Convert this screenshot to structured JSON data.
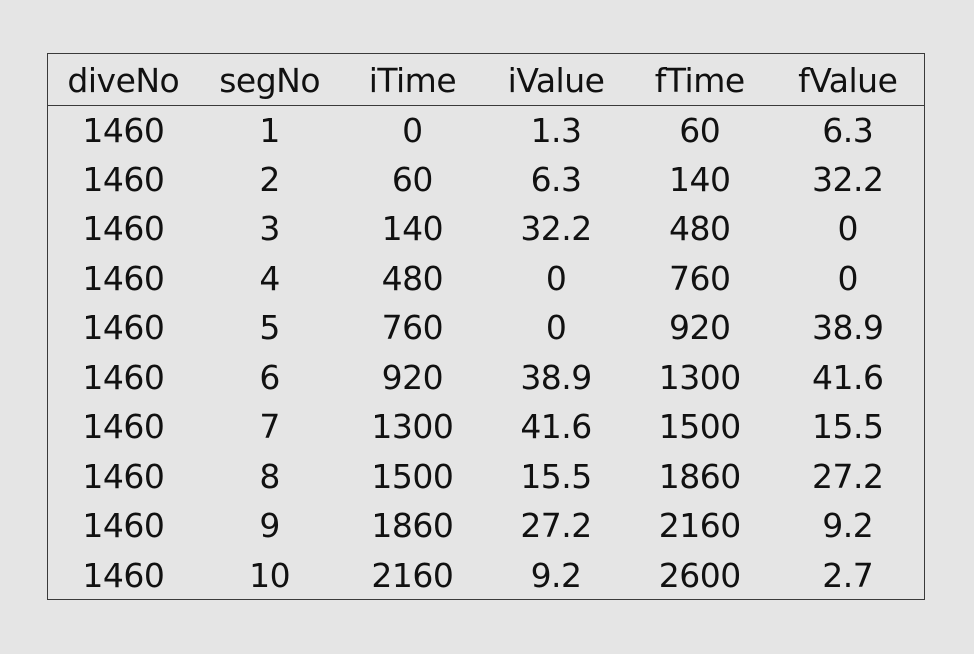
{
  "table": {
    "columns": [
      "diveNo",
      "segNo",
      "iTime",
      "iValue",
      "fTime",
      "fValue"
    ],
    "rows": [
      [
        "1460",
        "1",
        "0",
        "1.3",
        "60",
        "6.3"
      ],
      [
        "1460",
        "2",
        "60",
        "6.3",
        "140",
        "32.2"
      ],
      [
        "1460",
        "3",
        "140",
        "32.2",
        "480",
        "0"
      ],
      [
        "1460",
        "4",
        "480",
        "0",
        "760",
        "0"
      ],
      [
        "1460",
        "5",
        "760",
        "0",
        "920",
        "38.9"
      ],
      [
        "1460",
        "6",
        "920",
        "38.9",
        "1300",
        "41.6"
      ],
      [
        "1460",
        "7",
        "1300",
        "41.6",
        "1500",
        "15.5"
      ],
      [
        "1460",
        "8",
        "1500",
        "15.5",
        "1860",
        "27.2"
      ],
      [
        "1460",
        "9",
        "1860",
        "27.2",
        "2160",
        "9.2"
      ],
      [
        "1460",
        "10",
        "2160",
        "9.2",
        "2600",
        "2.7"
      ]
    ]
  }
}
